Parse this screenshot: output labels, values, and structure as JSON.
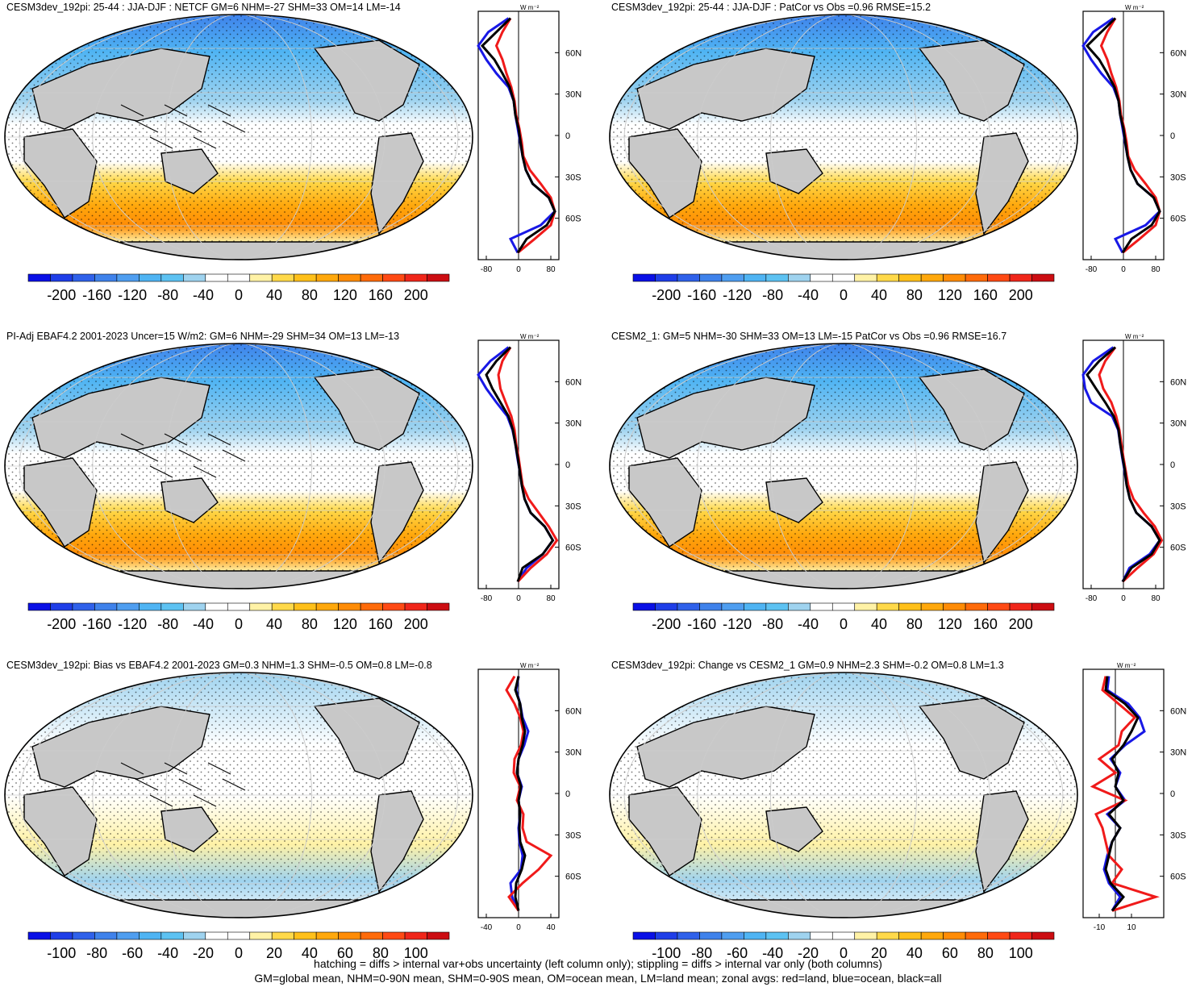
{
  "colors": {
    "colorbar_scale": [
      "#0a10e6",
      "#1f3ee8",
      "#2f61ea",
      "#3f82eb",
      "#4f9ef0",
      "#4fb4f3",
      "#5dc2f2",
      "#9fd3ef",
      "#ffffff",
      "#ffffff",
      "#fff2a6",
      "#ffd94a",
      "#ffc01a",
      "#ffa80c",
      "#ff8c06",
      "#ff6b0a",
      "#ff4a14",
      "#f0261a",
      "#cc0d12"
    ],
    "land": "#c8c8c8",
    "ocean_zonal": "#1818e6",
    "land_zonal": "#f01a1a",
    "all_zonal": "#000000"
  },
  "panels": [
    {
      "id": "cesm3dev-mean",
      "title": "CESM3dev_192pi: 25-44 : JJA-DJF : NETCF GM=6 NHM=-27 SHM=33 OM=14 LM=-14",
      "colorbar_ticks": [
        "-200",
        "-160",
        "-120",
        "-80",
        "-40",
        "0",
        "40",
        "80",
        "120",
        "160",
        "200"
      ],
      "zonal_x_ticks": [
        "-80",
        "0",
        "80"
      ],
      "zonal_units": "W m⁻²",
      "lat_ticks": [
        "60N",
        "30N",
        "0",
        "30S",
        "60S"
      ],
      "hatching": true
    },
    {
      "id": "cesm3dev-patcor",
      "title": "CESM3dev_192pi: 25-44 : JJA-DJF : PatCor vs Obs =0.96 RMSE=15.2",
      "colorbar_ticks": [
        "-200",
        "-160",
        "-120",
        "-80",
        "-40",
        "0",
        "40",
        "80",
        "120",
        "160",
        "200"
      ],
      "zonal_x_ticks": [
        "-80",
        "0",
        "80"
      ],
      "zonal_units": "W m⁻²",
      "lat_ticks": [
        "60N",
        "30N",
        "0",
        "30S",
        "60S"
      ],
      "hatching": false
    },
    {
      "id": "ebaf-obs",
      "title": "PI-Adj EBAF4.2 2001-2023 Uncer=15 W/m2: GM=6 NHM=-29 SHM=34 OM=13 LM=-13",
      "colorbar_ticks": [
        "-200",
        "-160",
        "-120",
        "-80",
        "-40",
        "0",
        "40",
        "80",
        "120",
        "160",
        "200"
      ],
      "zonal_x_ticks": [
        "-80",
        "0",
        "80"
      ],
      "zonal_units": "W m⁻²",
      "lat_ticks": [
        "60N",
        "30N",
        "0",
        "30S",
        "60S"
      ],
      "hatching": true
    },
    {
      "id": "cesm2",
      "title": "CESM2_1: GM=5 NHM=-30 SHM=33 OM=13 LM=-15 PatCor vs Obs =0.96 RMSE=16.7",
      "colorbar_ticks": [
        "-200",
        "-160",
        "-120",
        "-80",
        "-40",
        "0",
        "40",
        "80",
        "120",
        "160",
        "200"
      ],
      "zonal_x_ticks": [
        "-80",
        "0",
        "80"
      ],
      "zonal_units": "W m⁻²",
      "lat_ticks": [
        "60N",
        "30N",
        "0",
        "30S",
        "60S"
      ],
      "hatching": false
    },
    {
      "id": "bias",
      "title": "CESM3dev_192pi: Bias vs EBAF4.2 2001-2023 GM=0.3 NHM=1.3 SHM=-0.5 OM=0.8 LM=-0.8",
      "colorbar_ticks": [
        "-100",
        "-80",
        "-60",
        "-40",
        "-20",
        "0",
        "20",
        "40",
        "60",
        "80",
        "100"
      ],
      "zonal_x_ticks": [
        "-40",
        "0",
        "40"
      ],
      "zonal_units": "W m⁻²",
      "lat_ticks": [
        "60N",
        "30N",
        "0",
        "30S",
        "60S"
      ],
      "hatching": true
    },
    {
      "id": "change",
      "title": "CESM3dev_192pi: Change vs CESM2_1 GM=0.9 NHM=2.3 SHM=-0.2 OM=0.8 LM=1.3",
      "colorbar_ticks": [
        "-100",
        "-80",
        "-60",
        "-40",
        "-20",
        "0",
        "20",
        "40",
        "60",
        "80",
        "100"
      ],
      "zonal_x_ticks": [
        "-10",
        "10"
      ],
      "zonal_units": "W m⁻²",
      "lat_ticks": [
        "60N",
        "30N",
        "0",
        "30S",
        "60S"
      ],
      "hatching": false
    }
  ],
  "footer": {
    "line1": "hatching = diffs > internal var+obs uncertainty (left column only); stippling = diffs > internal var only (both columns)",
    "line2": "GM=global mean, NHM=0-90N mean, SHM=0-90S mean, OM=ocean mean, LM=land mean; zonal avgs: red=land, blue=ocean, black=all"
  },
  "chart_data": [
    {
      "type": "line",
      "panel": "cesm3dev-mean",
      "title": "CESM3dev_192pi: 25-44 : JJA-DJF : NETCF GM=6 NHM=-27 SHM=33 OM=14 LM=-14",
      "xlabel": "W m⁻²",
      "xlim": [
        -100,
        100
      ],
      "y": [
        -85,
        -75,
        -65,
        -55,
        -45,
        -35,
        -25,
        -15,
        -5,
        5,
        15,
        25,
        35,
        45,
        55,
        65,
        75,
        85
      ],
      "series": [
        {
          "name": "all",
          "values": [
            -2,
            20,
            70,
            90,
            75,
            35,
            18,
            10,
            5,
            0,
            -8,
            -12,
            -22,
            -40,
            -60,
            -90,
            -55,
            -20
          ]
        },
        {
          "name": "ocean",
          "values": [
            -2,
            -20,
            55,
            90,
            75,
            35,
            18,
            10,
            4,
            -2,
            -8,
            -12,
            -25,
            -55,
            -80,
            -110,
            -75,
            -25
          ]
        },
        {
          "name": "land",
          "values": [
            -2,
            40,
            80,
            90,
            80,
            55,
            28,
            12,
            8,
            2,
            -6,
            -10,
            -18,
            -30,
            -40,
            -55,
            -40,
            -20
          ]
        }
      ]
    },
    {
      "type": "line",
      "panel": "cesm3dev-patcor",
      "title": "CESM3dev_192pi: 25-44 : JJA-DJF : PatCor vs Obs =0.96 RMSE=15.2",
      "xlabel": "W m⁻²",
      "xlim": [
        -100,
        100
      ],
      "y": [
        -85,
        -75,
        -65,
        -55,
        -45,
        -35,
        -25,
        -15,
        -5,
        5,
        15,
        25,
        35,
        45,
        55,
        65,
        75,
        85
      ],
      "series": [
        {
          "name": "all",
          "values": [
            -2,
            20,
            70,
            90,
            75,
            35,
            18,
            10,
            5,
            0,
            -8,
            -12,
            -22,
            -40,
            -60,
            -90,
            -55,
            -20
          ]
        },
        {
          "name": "ocean",
          "values": [
            -2,
            -20,
            55,
            90,
            75,
            35,
            18,
            10,
            4,
            -2,
            -8,
            -12,
            -25,
            -55,
            -80,
            -110,
            -75,
            -25
          ]
        },
        {
          "name": "land",
          "values": [
            -2,
            40,
            80,
            90,
            80,
            55,
            28,
            12,
            8,
            2,
            -6,
            -10,
            -18,
            -30,
            -40,
            -55,
            -40,
            -20
          ]
        }
      ]
    },
    {
      "type": "line",
      "panel": "ebaf-obs",
      "title": "PI-Adj EBAF4.2 2001-2023 Uncer=15 W/m2: GM=6 NHM=-29 SHM=34 OM=13 LM=-13",
      "xlabel": "W m⁻²",
      "xlim": [
        -100,
        100
      ],
      "y": [
        -85,
        -75,
        -65,
        -55,
        -45,
        -35,
        -25,
        -15,
        -5,
        5,
        15,
        25,
        35,
        45,
        55,
        65,
        75,
        85
      ],
      "series": [
        {
          "name": "all",
          "values": [
            -2,
            10,
            60,
            85,
            65,
            30,
            15,
            8,
            3,
            -2,
            -8,
            -14,
            -25,
            -45,
            -65,
            -80,
            -55,
            -20
          ]
        },
        {
          "name": "ocean",
          "values": [
            -2,
            20,
            60,
            85,
            65,
            30,
            15,
            8,
            3,
            -3,
            -8,
            -15,
            -28,
            -55,
            -80,
            -100,
            -70,
            -25
          ]
        },
        {
          "name": "land",
          "values": [
            -2,
            30,
            70,
            95,
            75,
            50,
            25,
            10,
            5,
            0,
            -6,
            -10,
            -18,
            -32,
            -45,
            -50,
            -40,
            -20
          ]
        }
      ]
    },
    {
      "type": "line",
      "panel": "cesm2",
      "title": "CESM2_1: GM=5 NHM=-30 SHM=33 OM=13 LM=-15 PatCor vs Obs =0.96 RMSE=16.7",
      "xlabel": "W m⁻²",
      "xlim": [
        -100,
        100
      ],
      "y": [
        -85,
        -75,
        -65,
        -55,
        -45,
        -35,
        -25,
        -15,
        -5,
        5,
        15,
        25,
        35,
        45,
        55,
        65,
        75,
        85
      ],
      "series": [
        {
          "name": "all",
          "values": [
            -2,
            20,
            70,
            90,
            70,
            32,
            16,
            8,
            4,
            -2,
            -8,
            -12,
            -24,
            -45,
            -68,
            -90,
            -60,
            -20
          ]
        },
        {
          "name": "ocean",
          "values": [
            -2,
            15,
            65,
            90,
            70,
            32,
            16,
            8,
            3,
            -3,
            -8,
            -13,
            -28,
            -80,
            -95,
            -110,
            -75,
            -25
          ]
        },
        {
          "name": "land",
          "values": [
            -2,
            35,
            75,
            95,
            78,
            50,
            25,
            12,
            6,
            0,
            -5,
            -10,
            -18,
            -30,
            -50,
            -60,
            -45,
            -20
          ]
        }
      ]
    },
    {
      "type": "line",
      "panel": "bias",
      "title": "CESM3dev_192pi: Bias vs EBAF4.2 2001-2023 GM=0.3 NHM=1.3 SHM=-0.5 OM=0.8 LM=-0.8",
      "xlabel": "W m⁻²",
      "xlim": [
        -50,
        50
      ],
      "y": [
        -85,
        -75,
        -65,
        -55,
        -45,
        -35,
        -25,
        -15,
        -5,
        5,
        15,
        25,
        35,
        45,
        55,
        65,
        75,
        85
      ],
      "series": [
        {
          "name": "all",
          "values": [
            0,
            -4,
            -3,
            4,
            8,
            2,
            1,
            2,
            0,
            3,
            -2,
            0,
            5,
            8,
            4,
            2,
            -4,
            0
          ]
        },
        {
          "name": "ocean",
          "values": [
            0,
            -8,
            -10,
            3,
            5,
            1,
            0,
            2,
            0,
            4,
            -2,
            0,
            7,
            12,
            5,
            2,
            -3,
            0
          ]
        },
        {
          "name": "land",
          "values": [
            0,
            -12,
            5,
            25,
            40,
            10,
            5,
            6,
            -2,
            2,
            -6,
            -5,
            3,
            6,
            2,
            -5,
            -15,
            -5
          ]
        }
      ]
    },
    {
      "type": "line",
      "panel": "change",
      "title": "CESM3dev_192pi: Change vs CESM2_1 GM=0.9 NHM=2.3 SHM=-0.2 OM=0.8 LM=1.3",
      "xlabel": "W m⁻²",
      "xlim": [
        -20,
        30
      ],
      "y": [
        -85,
        -75,
        -65,
        -55,
        -45,
        -35,
        -25,
        -15,
        -5,
        5,
        15,
        25,
        35,
        45,
        55,
        65,
        75,
        85
      ],
      "series": [
        {
          "name": "all",
          "values": [
            -2,
            5,
            -3,
            -6,
            -4,
            -2,
            3,
            -4,
            5,
            0,
            2,
            -2,
            5,
            10,
            14,
            6,
            -6,
            -5
          ]
        },
        {
          "name": "ocean",
          "values": [
            -2,
            3,
            -4,
            -7,
            -5,
            -2,
            3,
            -5,
            6,
            0,
            3,
            -3,
            6,
            18,
            15,
            8,
            -5,
            -4
          ]
        },
        {
          "name": "land",
          "values": [
            -2,
            25,
            -2,
            4,
            -4,
            -6,
            -8,
            -12,
            6,
            -14,
            0,
            -10,
            2,
            4,
            12,
            2,
            -8,
            -6
          ]
        }
      ]
    }
  ]
}
